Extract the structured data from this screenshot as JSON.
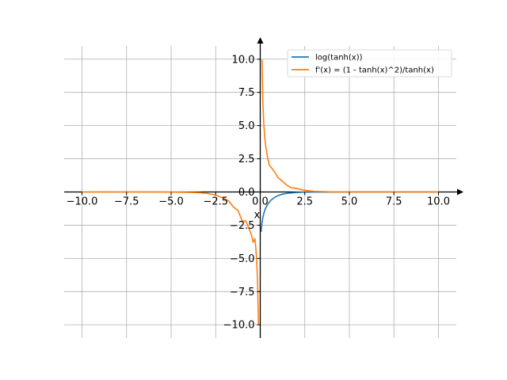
{
  "chart_data": {
    "type": "line",
    "title": "",
    "xlabel": "x",
    "ylabel": "",
    "xlim": [
      -11,
      11
    ],
    "ylim": [
      -11,
      11
    ],
    "grid": true,
    "legend_position": "top-right",
    "x_ticks": [
      -10,
      -7.5,
      -5,
      -2.5,
      0,
      2.5,
      5,
      7.5,
      10
    ],
    "x_tick_labels": [
      "−10.0",
      "−7.5",
      "−5.0",
      "−2.5",
      "0.0",
      "2.5",
      "5.0",
      "7.5",
      "10.0"
    ],
    "y_ticks": [
      -10,
      -7.5,
      -5,
      -2.5,
      0,
      2.5,
      5,
      7.5,
      10
    ],
    "y_tick_labels": [
      "−10.0",
      "−7.5",
      "−5.0",
      "−2.5",
      "0.0",
      "2.5",
      "5.0",
      "7.5",
      "10.0"
    ],
    "series": [
      {
        "name": "log(tanh(x))",
        "color": "#1f77b4",
        "x": [
          0.05,
          0.1,
          0.15,
          0.2,
          0.25,
          0.3,
          0.4,
          0.5,
          0.6,
          0.8,
          1.0,
          1.25,
          1.5,
          2.0,
          2.5,
          3.0,
          4.0,
          5.0,
          6.0,
          7.0,
          8.0,
          9.0,
          10.0
        ],
        "y": [
          -3.0,
          -2.31,
          -1.9,
          -1.62,
          -1.41,
          -1.23,
          -0.97,
          -0.77,
          -0.62,
          -0.41,
          -0.27,
          -0.16,
          -0.1,
          -0.04,
          -0.01,
          -0.005,
          -0.001,
          0.0,
          0.0,
          0.0,
          0.0,
          0.0,
          0.0
        ]
      },
      {
        "name": "f'(x) = (1 - tanh(x)^2)/tanh(x)",
        "color": "#ff7f0e",
        "x": [
          -10.0,
          -9.0,
          -8.0,
          -7.0,
          -6.0,
          -5.0,
          -4.0,
          -3.5,
          -3.0,
          -2.5,
          -2.0,
          -1.75,
          -1.5,
          -1.25,
          -1.0,
          -0.8,
          -0.6,
          -0.5,
          -0.4,
          -0.3,
          -0.25,
          -0.2,
          -0.15,
          -0.1,
          null,
          0.1,
          0.15,
          0.2,
          0.25,
          0.3,
          0.4,
          0.5,
          0.6,
          0.8,
          1.0,
          1.25,
          1.5,
          1.75,
          2.0,
          2.5,
          3.0,
          3.5,
          4.0,
          5.0,
          6.0,
          7.0,
          8.0,
          9.0,
          10.0
        ],
        "y": [
          0.0,
          0.0,
          0.0,
          0.0,
          0.0,
          -0.01,
          -0.03,
          -0.05,
          -0.1,
          -0.23,
          -0.5,
          -0.7,
          -1.14,
          -1.4,
          -2.21,
          -2.19,
          -2.88,
          -3.19,
          -3.79,
          -3.51,
          -4.18,
          -5.13,
          -6.72,
          -9.97,
          null,
          9.97,
          6.72,
          5.13,
          4.18,
          3.51,
          2.67,
          2.06,
          1.87,
          1.52,
          1.08,
          0.79,
          0.51,
          0.31,
          0.27,
          0.13,
          0.05,
          0.03,
          0.01,
          0.0,
          0.0,
          0.0,
          0.0,
          0.0,
          0.0
        ]
      }
    ]
  }
}
